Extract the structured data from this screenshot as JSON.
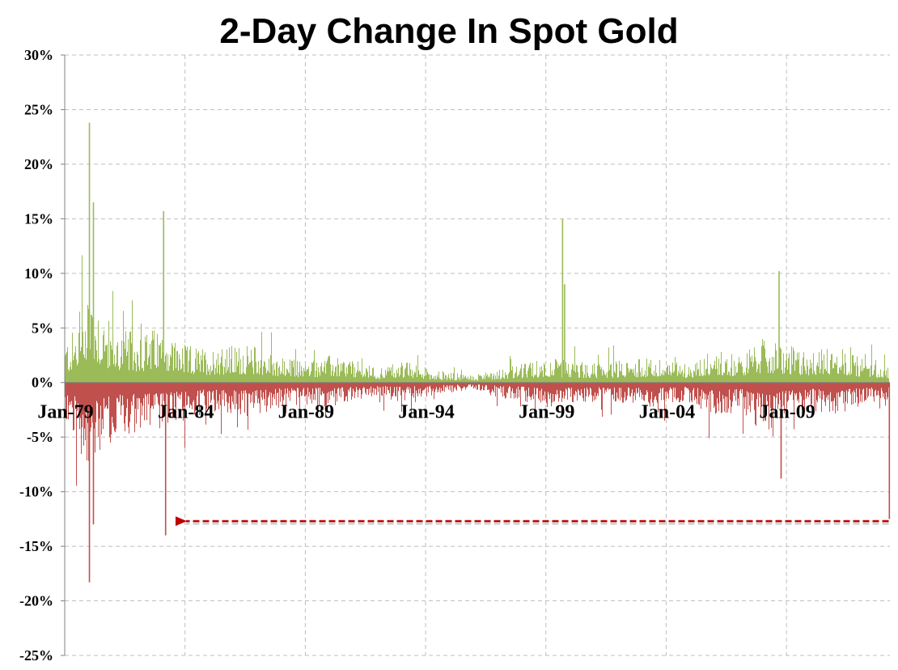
{
  "chart_data": {
    "type": "bar",
    "title": "2-Day Change In Spot Gold",
    "xlabel": "",
    "ylabel": "",
    "x_range": [
      "1979-01",
      "2013-04"
    ],
    "ylim": [
      -0.25,
      0.3
    ],
    "grid": true,
    "y_ticks": [
      "30%",
      "25%",
      "20%",
      "15%",
      "10%",
      "5%",
      "0%",
      "-5%",
      "-10%",
      "-15%",
      "-20%",
      "-25%"
    ],
    "y_tick_values": [
      0.3,
      0.25,
      0.2,
      0.15,
      0.1,
      0.05,
      0.0,
      -0.05,
      -0.1,
      -0.15,
      -0.2,
      -0.25
    ],
    "x_ticks": [
      "Jan-79",
      "Jan-84",
      "Jan-89",
      "Jan-94",
      "Jan-99",
      "Jan-04",
      "Jan-09"
    ],
    "x_tick_years": [
      1979,
      1984,
      1989,
      1994,
      1999,
      2004,
      2009
    ],
    "colors": {
      "positive": "#9bbb59",
      "negative": "#c0504d",
      "arrow": "#c00000",
      "grid": "#bfbfbf"
    },
    "notable_moves": [
      {
        "date": "1980-01",
        "value": 0.238
      },
      {
        "date": "1980-03",
        "value": 0.165
      },
      {
        "date": "1980-01",
        "value": -0.183
      },
      {
        "date": "1980-03",
        "value": -0.13
      },
      {
        "date": "1983-02",
        "value": 0.157
      },
      {
        "date": "1983-03",
        "value": -0.14
      },
      {
        "date": "1999-09",
        "value": 0.15
      },
      {
        "date": "1999-10",
        "value": 0.09
      },
      {
        "date": "2008-09",
        "value": 0.102
      },
      {
        "date": "2008-10",
        "value": -0.088
      },
      {
        "date": "2013-04",
        "value": -0.125
      }
    ],
    "envelope": {
      "years": [
        1979.0,
        1979.5,
        1980.0,
        1980.5,
        1981.0,
        1982.0,
        1983.0,
        1984.0,
        1985.0,
        1986.0,
        1987.0,
        1988.0,
        1989.0,
        1990.0,
        1991.0,
        1992.0,
        1993.0,
        1994.0,
        1995.0,
        1996.0,
        1997.0,
        1998.0,
        1999.0,
        2000.0,
        2001.0,
        2002.0,
        2003.0,
        2004.0,
        2005.0,
        2006.0,
        2007.0,
        2008.0,
        2009.0,
        2010.0,
        2011.0,
        2012.0,
        2013.0
      ],
      "upper": [
        0.035,
        0.045,
        0.09,
        0.06,
        0.045,
        0.04,
        0.045,
        0.03,
        0.028,
        0.03,
        0.03,
        0.02,
        0.018,
        0.022,
        0.018,
        0.012,
        0.018,
        0.012,
        0.008,
        0.006,
        0.012,
        0.015,
        0.02,
        0.018,
        0.016,
        0.018,
        0.02,
        0.018,
        0.016,
        0.028,
        0.022,
        0.035,
        0.03,
        0.025,
        0.03,
        0.022,
        0.015
      ],
      "lower": [
        -0.035,
        -0.05,
        -0.08,
        -0.06,
        -0.045,
        -0.04,
        -0.04,
        -0.03,
        -0.025,
        -0.028,
        -0.028,
        -0.02,
        -0.018,
        -0.02,
        -0.016,
        -0.012,
        -0.016,
        -0.012,
        -0.008,
        -0.006,
        -0.012,
        -0.015,
        -0.02,
        -0.018,
        -0.016,
        -0.016,
        -0.02,
        -0.018,
        -0.016,
        -0.03,
        -0.022,
        -0.04,
        -0.03,
        -0.022,
        -0.03,
        -0.02,
        -0.015
      ]
    },
    "annotation": {
      "type": "arrow",
      "from_date": "2013-04",
      "to_date": "1983-03",
      "value": -0.127
    }
  }
}
